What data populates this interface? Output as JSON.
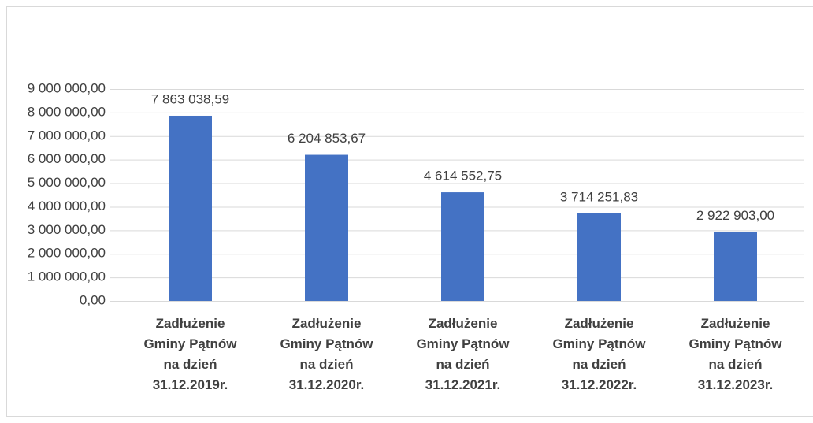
{
  "chart_data": {
    "type": "bar",
    "categories": [
      "Zadłużenie Gminy Pątnów na dzień 31.12.2019r.",
      "Zadłużenie Gminy Pątnów na dzień 31.12.2020r.",
      "Zadłużenie Gminy Pątnów na dzień 31.12.2021r.",
      "Zadłużenie Gminy Pątnów na dzień 31.12.2022r.",
      "Zadłużenie Gminy Pątnów na dzień 31.12.2023r."
    ],
    "values": [
      7863038.59,
      6204853.67,
      4614552.75,
      3714251.83,
      2922903.0
    ],
    "value_labels": [
      "7 863 038,59",
      "6 204 853,67",
      "4 614 552,75",
      "3 714 251,83",
      "2 922 903,00"
    ],
    "color": "#4472c4",
    "ylim": [
      0,
      9000000
    ],
    "yticks": [
      {
        "value": 0,
        "label": "0,00"
      },
      {
        "value": 1000000,
        "label": "1 000 000,00"
      },
      {
        "value": 2000000,
        "label": "2 000 000,00"
      },
      {
        "value": 3000000,
        "label": "3 000 000,00"
      },
      {
        "value": 4000000,
        "label": "4 000 000,00"
      },
      {
        "value": 5000000,
        "label": "5 000 000,00"
      },
      {
        "value": 6000000,
        "label": "6 000 000,00"
      },
      {
        "value": 7000000,
        "label": "7 000 000,00"
      },
      {
        "value": 8000000,
        "label": "8 000 000,00"
      },
      {
        "value": 9000000,
        "label": "9 000 000,00"
      }
    ],
    "grid": true
  }
}
